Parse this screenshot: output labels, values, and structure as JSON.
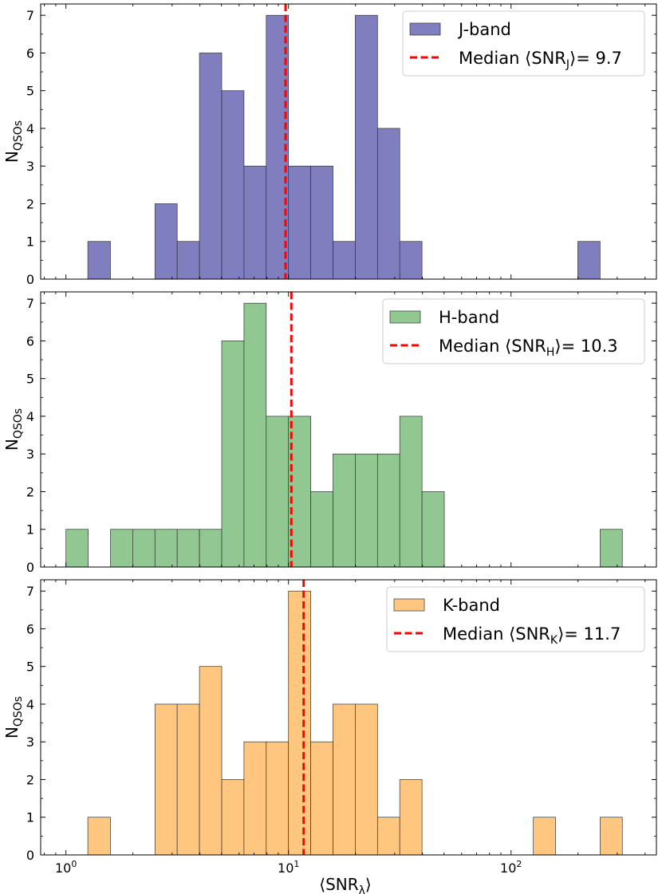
{
  "chart_data": [
    {
      "type": "bar",
      "band": "J-band",
      "legend_label": "J-band",
      "median_prefix": "Median ⟨SNR",
      "median_sub": "J",
      "median_suffix": "⟩= 9.7",
      "median": 9.7,
      "bar_color": "#7f7fbf",
      "median_color": "#ff0000",
      "ylabel_main": "N",
      "ylabel_sub": "QSOs",
      "ylim": [
        0,
        7.3
      ],
      "yticks": [
        "0",
        "1",
        "2",
        "3",
        "4",
        "5",
        "6",
        "7"
      ],
      "xscale": "log",
      "xlim": [
        0.77,
        450
      ],
      "bins": [
        {
          "x0": 1.254,
          "x1": 1.585,
          "count": 1
        },
        {
          "x0": 2.512,
          "x1": 3.162,
          "count": 2
        },
        {
          "x0": 3.162,
          "x1": 3.981,
          "count": 1
        },
        {
          "x0": 3.981,
          "x1": 5.012,
          "count": 6
        },
        {
          "x0": 5.012,
          "x1": 6.31,
          "count": 5
        },
        {
          "x0": 6.31,
          "x1": 7.943,
          "count": 3
        },
        {
          "x0": 7.943,
          "x1": 10.0,
          "count": 7
        },
        {
          "x0": 10.0,
          "x1": 12.59,
          "count": 3
        },
        {
          "x0": 12.59,
          "x1": 15.85,
          "count": 3
        },
        {
          "x0": 15.85,
          "x1": 19.95,
          "count": 1
        },
        {
          "x0": 19.95,
          "x1": 25.12,
          "count": 7
        },
        {
          "x0": 25.12,
          "x1": 31.62,
          "count": 4
        },
        {
          "x0": 31.62,
          "x1": 39.81,
          "count": 1
        },
        {
          "x0": 199.5,
          "x1": 251.2,
          "count": 1
        }
      ],
      "legend_position": "upper right"
    },
    {
      "type": "bar",
      "band": "H-band",
      "legend_label": "H-band",
      "median_prefix": "Median ⟨SNR",
      "median_sub": "H",
      "median_suffix": "⟩= 10.3",
      "median": 10.3,
      "bar_color": "#91c891",
      "median_color": "#ff0000",
      "ylabel_main": "N",
      "ylabel_sub": "QSOs",
      "ylim": [
        0,
        7.3
      ],
      "yticks": [
        "0",
        "1",
        "2",
        "3",
        "4",
        "5",
        "6",
        "7"
      ],
      "xscale": "log",
      "xlim": [
        0.77,
        450
      ],
      "bins": [
        {
          "x0": 1.0,
          "x1": 1.259,
          "count": 1
        },
        {
          "x0": 1.585,
          "x1": 1.995,
          "count": 1
        },
        {
          "x0": 1.995,
          "x1": 2.512,
          "count": 1
        },
        {
          "x0": 2.512,
          "x1": 3.162,
          "count": 1
        },
        {
          "x0": 3.162,
          "x1": 3.981,
          "count": 1
        },
        {
          "x0": 3.981,
          "x1": 5.012,
          "count": 1
        },
        {
          "x0": 5.012,
          "x1": 6.31,
          "count": 6
        },
        {
          "x0": 6.31,
          "x1": 7.943,
          "count": 7
        },
        {
          "x0": 7.943,
          "x1": 10.0,
          "count": 4
        },
        {
          "x0": 10.0,
          "x1": 12.59,
          "count": 4
        },
        {
          "x0": 12.59,
          "x1": 15.85,
          "count": 2
        },
        {
          "x0": 15.85,
          "x1": 19.95,
          "count": 3
        },
        {
          "x0": 19.95,
          "x1": 25.12,
          "count": 3
        },
        {
          "x0": 25.12,
          "x1": 31.62,
          "count": 3
        },
        {
          "x0": 31.62,
          "x1": 39.81,
          "count": 4
        },
        {
          "x0": 39.81,
          "x1": 50.12,
          "count": 2
        },
        {
          "x0": 251.2,
          "x1": 316.2,
          "count": 1
        }
      ],
      "legend_position": "upper right"
    },
    {
      "type": "bar",
      "band": "K-band",
      "legend_label": "K-band",
      "median_prefix": "Median ⟨SNR",
      "median_sub": "K",
      "median_suffix": "⟩= 11.7",
      "median": 11.7,
      "bar_color": "#ffc67f",
      "median_color": "#ff0000",
      "ylabel_main": "N",
      "ylabel_sub": "QSOs",
      "ylim": [
        0,
        7.3
      ],
      "yticks": [
        "0",
        "1",
        "2",
        "3",
        "4",
        "5",
        "6",
        "7"
      ],
      "xscale": "log",
      "xlim": [
        0.77,
        450
      ],
      "xticks": [
        {
          "value": 1,
          "base": "10",
          "exp": "0"
        },
        {
          "value": 10,
          "base": "10",
          "exp": "1"
        },
        {
          "value": 100,
          "base": "10",
          "exp": "2"
        }
      ],
      "xlabel_main": "⟨SNR",
      "xlabel_sub": "λ",
      "xlabel_suffix": "⟩",
      "bins": [
        {
          "x0": 1.254,
          "x1": 1.585,
          "count": 1
        },
        {
          "x0": 2.512,
          "x1": 3.162,
          "count": 4
        },
        {
          "x0": 3.162,
          "x1": 3.981,
          "count": 4
        },
        {
          "x0": 3.981,
          "x1": 5.012,
          "count": 5
        },
        {
          "x0": 5.012,
          "x1": 6.31,
          "count": 2
        },
        {
          "x0": 6.31,
          "x1": 7.943,
          "count": 3
        },
        {
          "x0": 7.943,
          "x1": 10.0,
          "count": 3
        },
        {
          "x0": 10.0,
          "x1": 12.59,
          "count": 7
        },
        {
          "x0": 12.59,
          "x1": 15.85,
          "count": 3
        },
        {
          "x0": 15.85,
          "x1": 19.95,
          "count": 4
        },
        {
          "x0": 19.95,
          "x1": 25.12,
          "count": 4
        },
        {
          "x0": 25.12,
          "x1": 31.62,
          "count": 1
        },
        {
          "x0": 31.62,
          "x1": 39.81,
          "count": 2
        },
        {
          "x0": 125.9,
          "x1": 158.5,
          "count": 1
        },
        {
          "x0": 251.2,
          "x1": 316.2,
          "count": 1
        }
      ],
      "legend_position": "upper right"
    }
  ]
}
